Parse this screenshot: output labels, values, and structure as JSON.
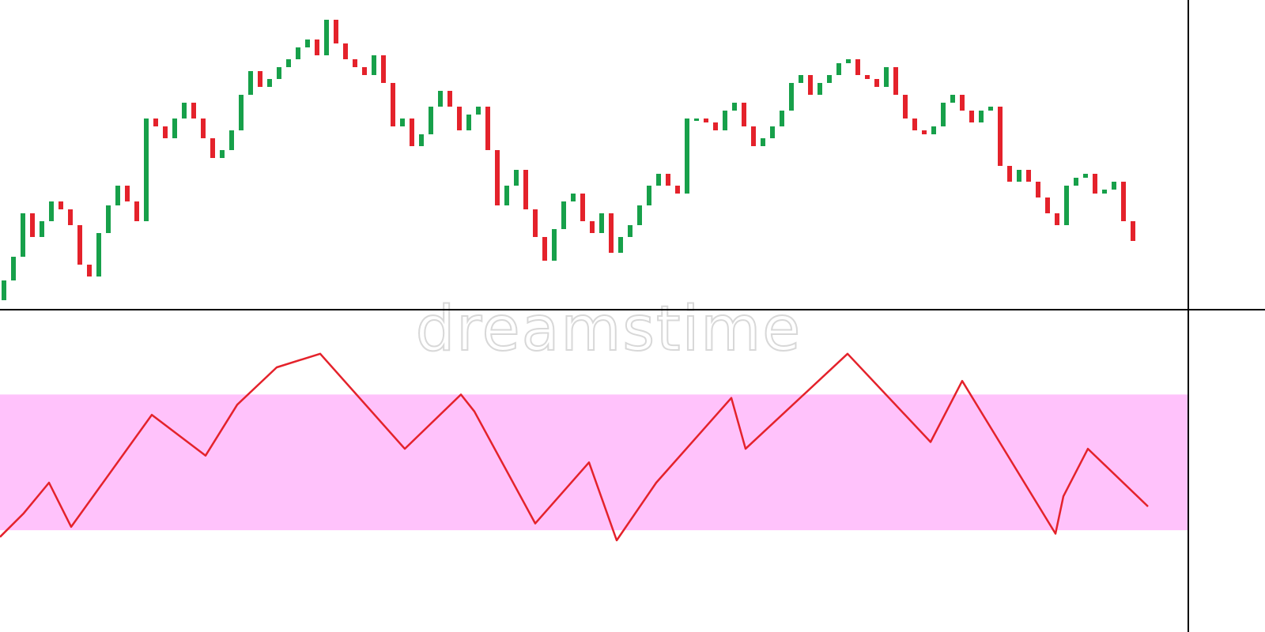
{
  "watermark": "dreamstime",
  "chart_data": [
    {
      "type": "candlestick",
      "ylim": [
        8,
        400
      ],
      "up_color": "#17a04a",
      "down_color": "#e4222b",
      "open": [
        20,
        45,
        75,
        130,
        100,
        120,
        145,
        135,
        115,
        65,
        50,
        105,
        140,
        165,
        145,
        120,
        250,
        240,
        225,
        250,
        270,
        250,
        225,
        200,
        210,
        235,
        280,
        310,
        290,
        300,
        315,
        325,
        340,
        350,
        330,
        375,
        345,
        325,
        315,
        305,
        330,
        295,
        240,
        250,
        215,
        230,
        265,
        285,
        265,
        235,
        255,
        265,
        210,
        140,
        165,
        185,
        135,
        100,
        70,
        110,
        145,
        155,
        120,
        105,
        130,
        80,
        100,
        115,
        140,
        165,
        180,
        165,
        155,
        250,
        250,
        245,
        235,
        260,
        270,
        240,
        215,
        225,
        240,
        260,
        295,
        305,
        280,
        295,
        305,
        320,
        325,
        305,
        300,
        290,
        315,
        280,
        250,
        235,
        230,
        240,
        270,
        280,
        260,
        245,
        260,
        265,
        190,
        170,
        185,
        170,
        150,
        130,
        115,
        165,
        175,
        180,
        155,
        160,
        170,
        120
      ],
      "close": [
        45,
        75,
        130,
        100,
        120,
        145,
        135,
        115,
        65,
        50,
        105,
        140,
        165,
        145,
        120,
        250,
        240,
        225,
        250,
        270,
        250,
        225,
        200,
        210,
        235,
        280,
        310,
        290,
        300,
        315,
        325,
        340,
        350,
        330,
        375,
        345,
        325,
        315,
        305,
        330,
        295,
        240,
        250,
        215,
        230,
        265,
        285,
        265,
        235,
        255,
        265,
        210,
        140,
        165,
        185,
        135,
        100,
        70,
        110,
        145,
        155,
        120,
        105,
        130,
        80,
        100,
        115,
        140,
        165,
        180,
        165,
        155,
        250,
        250,
        245,
        235,
        260,
        270,
        240,
        215,
        225,
        240,
        260,
        295,
        305,
        280,
        295,
        305,
        320,
        325,
        305,
        300,
        290,
        315,
        280,
        250,
        235,
        230,
        240,
        270,
        280,
        260,
        245,
        260,
        265,
        190,
        170,
        185,
        170,
        150,
        130,
        115,
        165,
        175,
        180,
        155,
        160,
        170,
        120,
        95
      ]
    },
    {
      "type": "line",
      "xlim": [
        0,
        1503
      ],
      "ylim": [
        0,
        95
      ],
      "color": "#e4222b",
      "band": [
        30,
        70
      ],
      "band_color": "#ffc2fb",
      "x": [
        0,
        30,
        62,
        90,
        192,
        260,
        300,
        350,
        405,
        512,
        583,
        600,
        677,
        745,
        780,
        830,
        925,
        943,
        1072,
        1177,
        1217,
        1335,
        1345,
        1376,
        1452
      ],
      "values": [
        28,
        35,
        44,
        31,
        64,
        52,
        67,
        78,
        82,
        54,
        70,
        65,
        32,
        50,
        27,
        44,
        69,
        54,
        82,
        56,
        74,
        29,
        40,
        54,
        37
      ]
    }
  ]
}
